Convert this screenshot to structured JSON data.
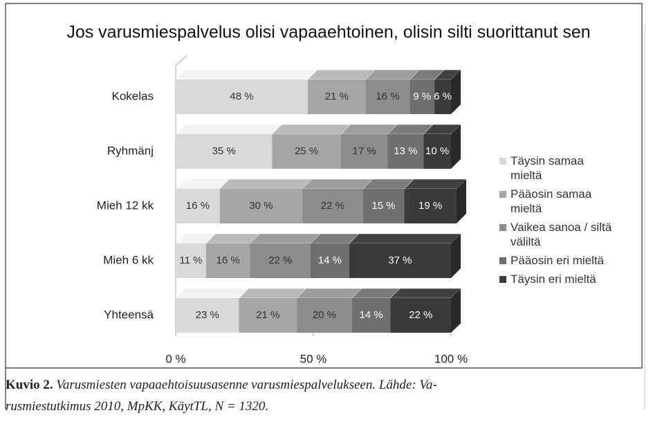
{
  "chart_data": {
    "type": "bar",
    "orientation": "horizontal",
    "stacked": true,
    "title": "Jos varusmiespalvelus olisi vapaaehtoinen, olisin silti suorittanut sen",
    "categories": [
      "Kokelas",
      "Ryhmänj",
      "Mieh 12 kk",
      "Mieh 6 kk",
      "Yhteensä"
    ],
    "series": [
      {
        "name": "Täysin samaa mieltä",
        "color": "#d9d9d9",
        "values": [
          48,
          35,
          16,
          11,
          23
        ],
        "value_labels": [
          "48 %",
          "35 %",
          "16 %",
          "11 %",
          "23 %"
        ]
      },
      {
        "name": "Pääosin samaa mieltä",
        "color": "#a6a6a6",
        "values": [
          21,
          25,
          30,
          16,
          21
        ],
        "value_labels": [
          "21 %",
          "25 %",
          "30 %",
          "16 %",
          "21 %"
        ]
      },
      {
        "name": "Vaikea sanoa / siltä väliltä",
        "color": "#8c8c8c",
        "values": [
          16,
          17,
          22,
          22,
          20
        ],
        "value_labels": [
          "16 %",
          "17 %",
          "22 %",
          "22 %",
          "20 %"
        ]
      },
      {
        "name": "Pääosin eri mieltä",
        "color": "#6f6f6f",
        "values": [
          9,
          13,
          15,
          14,
          14
        ],
        "value_labels": [
          "9 %",
          "13 %",
          "15 %",
          "14 %",
          "14 %"
        ]
      },
      {
        "name": "Täysin eri mieltä",
        "color": "#3a3a3a",
        "values": [
          6,
          10,
          19,
          37,
          22
        ],
        "value_labels": [
          "6 %",
          "10 %",
          "19 %",
          "37 %",
          "22 %"
        ]
      }
    ],
    "xlim": [
      0,
      100
    ],
    "xticks": [
      {
        "value": 0,
        "label": "0 %"
      },
      {
        "value": 50,
        "label": "50 %"
      },
      {
        "value": 100,
        "label": "100 %"
      }
    ],
    "grid": false,
    "legend": "right"
  },
  "caption": {
    "label": "Kuvio 2.",
    "lines": [
      "Varusmiesten vapaaehtoisuusasenne varusmiespalvelukseen. Lähde: Va-",
      "rusmiestutkimus 2010, MpKK, KäytTL, N = 1320."
    ]
  }
}
